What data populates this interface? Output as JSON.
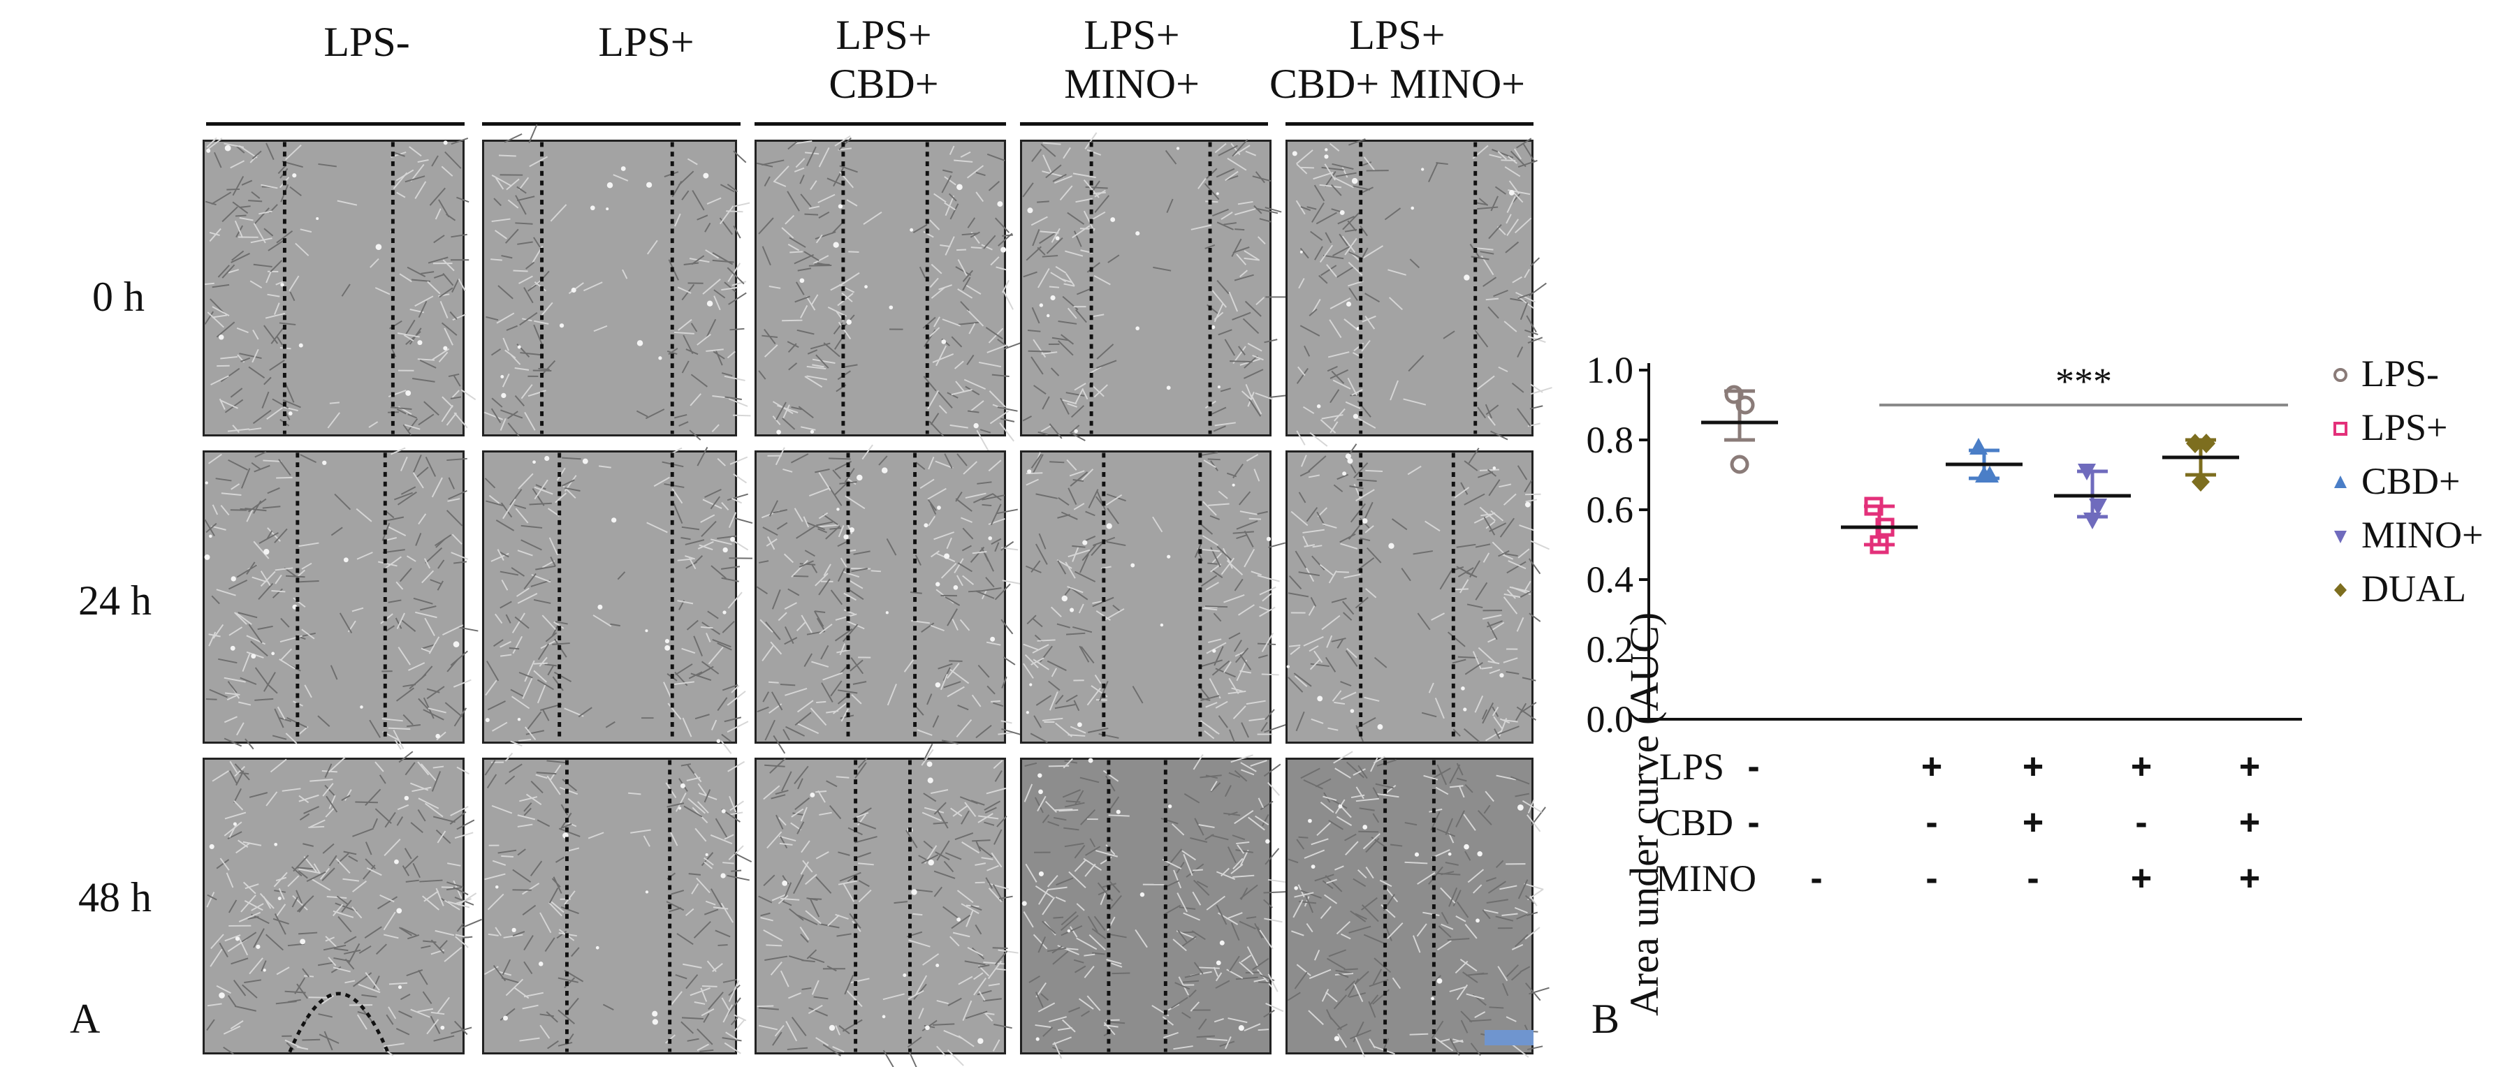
{
  "panelA": {
    "label": "A",
    "columns": [
      {
        "line1": "LPS-",
        "line2": ""
      },
      {
        "line1": "LPS+",
        "line2": ""
      },
      {
        "line1": "LPS+",
        "line2": "CBD+"
      },
      {
        "line1": "LPS+",
        "line2": "MINO+"
      },
      {
        "line1": "LPS+",
        "line2": "CBD+ MINO+"
      }
    ],
    "rows": [
      "0 h",
      "24 h",
      "48 h"
    ]
  },
  "panelB": {
    "label": "B",
    "factors": [
      {
        "name": "LPS",
        "signs": [
          "-",
          "+",
          "+",
          "+",
          "+"
        ]
      },
      {
        "name": "CBD",
        "signs": [
          "-",
          "-",
          "+",
          "-",
          "+"
        ]
      },
      {
        "name": "MINO",
        "signs": [
          "-",
          "-",
          "-",
          "+",
          "+"
        ]
      }
    ]
  },
  "chart_data": {
    "type": "scatter",
    "ylabel": "Area under curve (AUC)",
    "ylim": [
      0.0,
      1.0
    ],
    "yticks": [
      "0.0",
      "0.2",
      "0.4",
      "0.6",
      "0.8",
      "1.0"
    ],
    "categories": [
      "LPS-",
      "LPS+",
      "CBD+",
      "MINO+",
      "DUAL"
    ],
    "series": [
      {
        "name": "LPS-",
        "marker": "open-circle",
        "color": "#8a7b78",
        "points": [
          0.93,
          0.9,
          0.73
        ],
        "mean": 0.85,
        "error": [
          0.8,
          0.94
        ]
      },
      {
        "name": "LPS+",
        "marker": "open-square",
        "color": "#e3307a",
        "points": [
          0.61,
          0.55,
          0.5
        ],
        "mean": 0.55,
        "error": [
          0.5,
          0.61
        ]
      },
      {
        "name": "CBD+",
        "marker": "triangle-up",
        "color": "#4a7ec7",
        "points": [
          0.78,
          0.7,
          0.7
        ],
        "mean": 0.73,
        "error": [
          0.69,
          0.77
        ]
      },
      {
        "name": "MINO+",
        "marker": "triangle-down",
        "color": "#6f6bbd",
        "points": [
          0.71,
          0.61,
          0.57
        ],
        "mean": 0.64,
        "error": [
          0.58,
          0.71
        ]
      },
      {
        "name": "DUAL",
        "marker": "diamond",
        "color": "#7d6e1f",
        "points": [
          0.79,
          0.79,
          0.68
        ],
        "mean": 0.75,
        "error": [
          0.7,
          0.8
        ]
      }
    ],
    "annotation": {
      "text": "***",
      "span": [
        "LPS+",
        "DUAL"
      ],
      "y": 0.9
    },
    "legend_position": "right"
  }
}
